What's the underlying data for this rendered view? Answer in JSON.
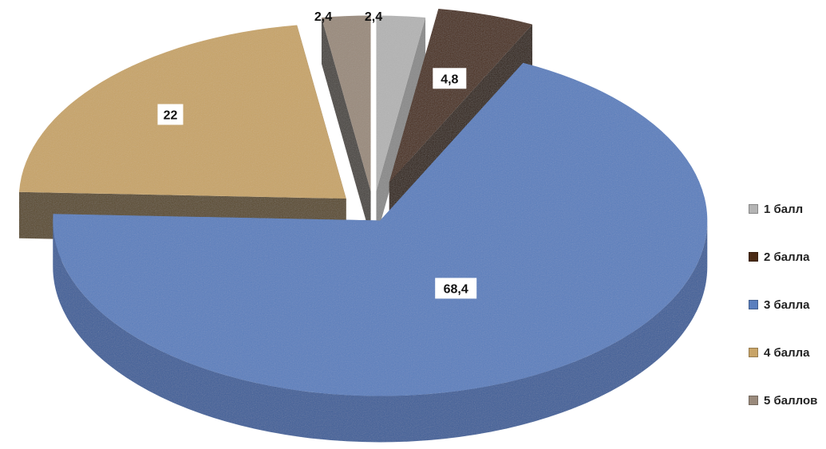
{
  "chart_data": {
    "type": "pie",
    "categories": [
      "1 балл",
      "2 балла",
      "3 балла",
      "4 балла",
      "5 баллов"
    ],
    "values": [
      2.4,
      4.8,
      68.4,
      22,
      2.4
    ],
    "data_labels": [
      "2,4",
      "4,8",
      "68,4",
      "22",
      "2,4"
    ],
    "colors": [
      "#b4b4b4",
      "#4a2a14",
      "#5a7fbe",
      "#c8a468",
      "#9a8a7c"
    ],
    "side_colors": [
      "#8a8a8a",
      "#2e1a0c",
      "#3e5f99",
      "#5a4a2a",
      "#4a4440"
    ],
    "exploded": true,
    "three_d": true,
    "legend_position": "right"
  }
}
